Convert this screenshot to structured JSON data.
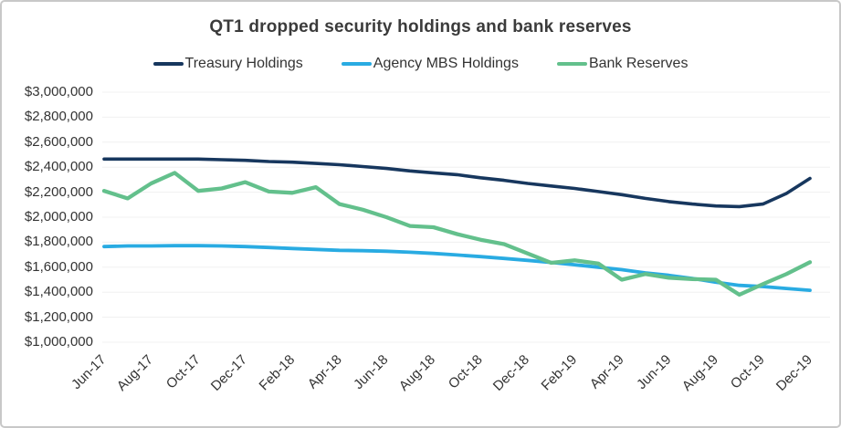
{
  "chart": {
    "title": "QT1 dropped security holdings and bank reserves"
  },
  "chart_data": {
    "type": "line",
    "title": "QT1 dropped security holdings and bank reserves",
    "x": [
      "Jun-17",
      "Jul-17",
      "Aug-17",
      "Sep-17",
      "Oct-17",
      "Nov-17",
      "Dec-17",
      "Jan-18",
      "Feb-18",
      "Mar-18",
      "Apr-18",
      "May-18",
      "Jun-18",
      "Jul-18",
      "Aug-18",
      "Sep-18",
      "Oct-18",
      "Nov-18",
      "Dec-18",
      "Jan-19",
      "Feb-19",
      "Mar-19",
      "Apr-19",
      "May-19",
      "Jun-19",
      "Jul-19",
      "Aug-19",
      "Sep-19",
      "Oct-19",
      "Nov-19",
      "Dec-19"
    ],
    "x_tick_labels": [
      "Jun-17",
      "Aug-17",
      "Oct-17",
      "Dec-17",
      "Feb-18",
      "Apr-18",
      "Jun-18",
      "Aug-18",
      "Oct-18",
      "Dec-18",
      "Feb-19",
      "Apr-19",
      "Jun-19",
      "Aug-19",
      "Oct-19",
      "Dec-19"
    ],
    "y_tick_labels": [
      "$3,000,000",
      "$2,800,000",
      "$2,600,000",
      "$2,400,000",
      "$2,200,000",
      "$2,000,000",
      "$1,800,000",
      "$1,600,000",
      "$1,400,000",
      "$1,200,000",
      "$1,000,000"
    ],
    "ylim": [
      1000000,
      3000000
    ],
    "y_tick_step": 200000,
    "grid": "horizontal",
    "gridline_color": "#f0f0f0",
    "legend_position": "top",
    "series": [
      {
        "name": "Treasury Holdings",
        "color": "#17375E",
        "line_width": 3.6,
        "values": [
          2465000,
          2465000,
          2465000,
          2465000,
          2465000,
          2460000,
          2455000,
          2445000,
          2440000,
          2430000,
          2420000,
          2405000,
          2390000,
          2370000,
          2355000,
          2340000,
          2315000,
          2295000,
          2270000,
          2250000,
          2230000,
          2205000,
          2180000,
          2150000,
          2125000,
          2105000,
          2090000,
          2085000,
          2105000,
          2190000,
          2310000
        ]
      },
      {
        "name": "Agency MBS Holdings",
        "color": "#29ABE2",
        "line_width": 3.8,
        "values": [
          1765000,
          1770000,
          1770000,
          1772000,
          1772000,
          1770000,
          1765000,
          1758000,
          1750000,
          1742000,
          1735000,
          1732000,
          1728000,
          1720000,
          1710000,
          1698000,
          1685000,
          1670000,
          1655000,
          1638000,
          1620000,
          1600000,
          1580000,
          1555000,
          1535000,
          1510000,
          1480000,
          1455000,
          1445000,
          1430000,
          1415000
        ]
      },
      {
        "name": "Bank Reserves",
        "color": "#63C08C",
        "line_width": 4.3,
        "values": [
          2210000,
          2150000,
          2270000,
          2355000,
          2210000,
          2230000,
          2280000,
          2205000,
          2195000,
          2240000,
          2105000,
          2060000,
          2000000,
          1930000,
          1920000,
          1865000,
          1820000,
          1785000,
          1710000,
          1635000,
          1655000,
          1630000,
          1500000,
          1545000,
          1515000,
          1505000,
          1500000,
          1380000,
          1465000,
          1545000,
          1640000
        ]
      }
    ]
  }
}
